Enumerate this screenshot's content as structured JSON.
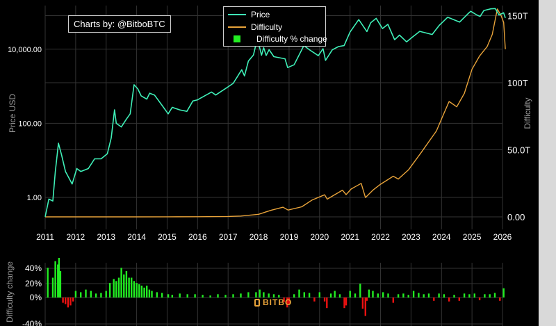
{
  "credit": "Charts by: @BitboBTC",
  "watermark": "BITBO",
  "colors": {
    "price": "#3ff0b8",
    "difficulty": "#e8a33a",
    "change_positive": "#22ee22",
    "change_negative": "#ee1111",
    "grid": "#333333",
    "text": "#ffffff",
    "axis_title": "#9a9a9a"
  },
  "chart_data": [
    {
      "type": "line",
      "log_y": true,
      "x_ticks": [
        "2011",
        "2012",
        "2013",
        "2014",
        "2015",
        "2016",
        "2017",
        "2018",
        "2019",
        "2020",
        "2021",
        "2022",
        "2023",
        "2024",
        "2025",
        "2026"
      ],
      "ylabel": "Price USD",
      "y_ticks": [
        {
          "value": 1,
          "label": "1.00"
        },
        {
          "value": 100,
          "label": "100.00"
        },
        {
          "value": 10000,
          "label": "10,000.00"
        }
      ],
      "y2label": "Difficulty",
      "y2_ticks": [
        {
          "value": 0,
          "label": "0.00"
        },
        {
          "value": 50,
          "label": "50.0T"
        },
        {
          "value": 100,
          "label": "100T"
        },
        {
          "value": 150,
          "label": "150T"
        }
      ],
      "legend": [
        "Price",
        "Difficulty",
        "Difficulty % change"
      ],
      "series": [
        {
          "name": "Price",
          "axis": "left",
          "points": [
            [
              "2011-01-01",
              0.3
            ],
            [
              "2011-02-15",
              0.9
            ],
            [
              "2011-04-01",
              0.8
            ],
            [
              "2011-05-01",
              5
            ],
            [
              "2011-06-08",
              29
            ],
            [
              "2011-07-15",
              14
            ],
            [
              "2011-09-01",
              5
            ],
            [
              "2011-11-20",
              2.3
            ],
            [
              "2012-01-15",
              6
            ],
            [
              "2012-03-01",
              5
            ],
            [
              "2012-06-01",
              6
            ],
            [
              "2012-08-15",
              11
            ],
            [
              "2012-11-01",
              11
            ],
            [
              "2013-01-15",
              15
            ],
            [
              "2013-03-01",
              40
            ],
            [
              "2013-04-10",
              230
            ],
            [
              "2013-05-01",
              100
            ],
            [
              "2013-07-01",
              80
            ],
            [
              "2013-09-01",
              130
            ],
            [
              "2013-10-15",
              180
            ],
            [
              "2013-12-01",
              1100
            ],
            [
              "2014-01-15",
              850
            ],
            [
              "2014-02-25",
              550
            ],
            [
              "2014-05-01",
              450
            ],
            [
              "2014-06-05",
              650
            ],
            [
              "2014-08-01",
              580
            ],
            [
              "2014-10-01",
              380
            ],
            [
              "2015-01-14",
              180
            ],
            [
              "2015-03-01",
              270
            ],
            [
              "2015-06-01",
              230
            ],
            [
              "2015-08-25",
              210
            ],
            [
              "2015-11-05",
              400
            ],
            [
              "2016-01-01",
              430
            ],
            [
              "2016-06-15",
              700
            ],
            [
              "2016-08-05",
              580
            ],
            [
              "2016-12-31",
              960
            ],
            [
              "2017-03-01",
              1200
            ],
            [
              "2017-06-12",
              2800
            ],
            [
              "2017-07-15",
              1900
            ],
            [
              "2017-09-01",
              4800
            ],
            [
              "2017-11-01",
              7000
            ],
            [
              "2017-12-17",
              19500
            ],
            [
              "2018-02-06",
              6900
            ],
            [
              "2018-03-01",
              11000
            ],
            [
              "2018-04-01",
              6800
            ],
            [
              "2018-05-05",
              9700
            ],
            [
              "2018-07-01",
              6300
            ],
            [
              "2018-11-14",
              5500
            ],
            [
              "2018-12-15",
              3200
            ],
            [
              "2019-03-01",
              3800
            ],
            [
              "2019-06-26",
              12500
            ],
            [
              "2019-09-01",
              9700
            ],
            [
              "2019-12-17",
              6700
            ],
            [
              "2020-02-12",
              10300
            ],
            [
              "2020-03-12",
              5000
            ],
            [
              "2020-06-01",
              9600
            ],
            [
              "2020-08-15",
              11800
            ],
            [
              "2020-10-21",
              12500
            ],
            [
              "2020-12-31",
              29000
            ],
            [
              "2021-04-14",
              63000
            ],
            [
              "2021-07-20",
              30000
            ],
            [
              "2021-09-06",
              52000
            ],
            [
              "2021-11-10",
              68000
            ],
            [
              "2022-01-24",
              36000
            ],
            [
              "2022-03-28",
              47000
            ],
            [
              "2022-06-18",
              18000
            ],
            [
              "2022-08-15",
              24000
            ],
            [
              "2022-11-09",
              15800
            ],
            [
              "2023-01-15",
              21000
            ],
            [
              "2023-04-14",
              30400
            ],
            [
              "2023-09-11",
              25000
            ],
            [
              "2023-12-05",
              44000
            ],
            [
              "2024-03-14",
              73000
            ],
            [
              "2024-08-05",
              54000
            ],
            [
              "2024-11-13",
              90000
            ],
            [
              "2024-12-17",
              106000
            ],
            [
              "2025-02-28",
              84000
            ],
            [
              "2025-04-07",
              77000
            ],
            [
              "2025-05-22",
              111000
            ],
            [
              "2025-08-14",
              123000
            ],
            [
              "2025-10-06",
              125000
            ],
            [
              "2025-11-21",
              84000
            ],
            [
              "2026-01-14",
              96000
            ],
            [
              "2026-02-05",
              70000
            ]
          ]
        },
        {
          "name": "Difficulty",
          "axis": "right",
          "points": [
            [
              "2011-01-01",
              0
            ],
            [
              "2014-01-01",
              0.0015
            ],
            [
              "2015-01-01",
              0.04
            ],
            [
              "2016-01-01",
              0.11
            ],
            [
              "2017-01-01",
              0.33
            ],
            [
              "2017-06-01",
              0.6
            ],
            [
              "2018-01-01",
              1.9
            ],
            [
              "2018-06-01",
              5
            ],
            [
              "2018-10-20",
              7.2
            ],
            [
              "2018-12-20",
              5.1
            ],
            [
              "2019-06-01",
              7.5
            ],
            [
              "2019-10-01",
              12.5
            ],
            [
              "2020-03-01",
              16.5
            ],
            [
              "2020-04-01",
              13.2
            ],
            [
              "2020-10-01",
              19.9
            ],
            [
              "2020-11-15",
              16.6
            ],
            [
              "2021-01-15",
              20.8
            ],
            [
              "2021-05-13",
              25
            ],
            [
              "2021-07-03",
              14.4
            ],
            [
              "2021-10-01",
              19.9
            ],
            [
              "2022-01-01",
              24.3
            ],
            [
              "2022-06-01",
              30.3
            ],
            [
              "2022-08-01",
              28.2
            ],
            [
              "2022-12-01",
              35
            ],
            [
              "2023-05-01",
              48
            ],
            [
              "2023-11-01",
              64
            ],
            [
              "2024-01-01",
              73
            ],
            [
              "2024-04-01",
              86
            ],
            [
              "2024-07-01",
              82
            ],
            [
              "2024-10-01",
              92
            ],
            [
              "2025-01-01",
              110
            ],
            [
              "2025-04-01",
              120
            ],
            [
              "2025-07-01",
              127
            ],
            [
              "2025-09-01",
              136
            ],
            [
              "2025-11-01",
              155
            ],
            [
              "2025-12-15",
              150
            ],
            [
              "2026-01-15",
              145
            ],
            [
              "2026-02-05",
              125
            ]
          ]
        }
      ]
    },
    {
      "type": "bar",
      "ylabel": "Difficulty change",
      "y_ticks": [
        "-40%",
        "0%",
        "20%",
        "40%"
      ],
      "series": [
        {
          "name": "Difficulty % change",
          "x": [
            "2011-02-01",
            "2011-04-01",
            "2011-05-01",
            "2011-06-01",
            "2011-06-15",
            "2011-07-01",
            "2011-08-01",
            "2011-09-01",
            "2011-10-01",
            "2011-11-01",
            "2011-12-01",
            "2012-01-01",
            "2012-03-01",
            "2012-05-01",
            "2012-07-01",
            "2012-09-01",
            "2012-11-01",
            "2013-01-01",
            "2013-02-15",
            "2013-04-01",
            "2013-05-01",
            "2013-06-01",
            "2013-07-01",
            "2013-08-01",
            "2013-09-01",
            "2013-10-01",
            "2013-11-01",
            "2013-12-01",
            "2014-01-01",
            "2014-02-01",
            "2014-03-01",
            "2014-04-01",
            "2014-05-01",
            "2014-06-01",
            "2014-07-01",
            "2014-09-01",
            "2014-11-01",
            "2015-01-15",
            "2015-03-01",
            "2015-06-01",
            "2015-09-01",
            "2015-12-01",
            "2016-03-01",
            "2016-06-01",
            "2016-09-01",
            "2016-12-01",
            "2017-03-01",
            "2017-06-01",
            "2017-09-01",
            "2017-12-01",
            "2018-01-15",
            "2018-03-01",
            "2018-05-01",
            "2018-07-01",
            "2018-09-01",
            "2018-11-01",
            "2018-12-10",
            "2019-01-01",
            "2019-03-01",
            "2019-05-01",
            "2019-07-01",
            "2019-09-01",
            "2019-11-01",
            "2020-01-01",
            "2020-03-01",
            "2020-03-28",
            "2020-05-15",
            "2020-07-01",
            "2020-09-01",
            "2020-10-25",
            "2020-11-15",
            "2021-01-01",
            "2021-03-01",
            "2021-05-01",
            "2021-06-01",
            "2021-07-03",
            "2021-07-20",
            "2021-08-15",
            "2021-10-01",
            "2021-12-01",
            "2022-02-01",
            "2022-04-01",
            "2022-06-01",
            "2022-08-01",
            "2022-10-01",
            "2022-12-01",
            "2023-02-01",
            "2023-04-01",
            "2023-06-01",
            "2023-08-01",
            "2023-10-01",
            "2023-12-01",
            "2024-02-01",
            "2024-04-01",
            "2024-06-01",
            "2024-08-01",
            "2024-10-01",
            "2024-12-01",
            "2025-02-01",
            "2025-04-01",
            "2025-06-01",
            "2025-08-01",
            "2025-10-01",
            "2025-12-01",
            "2026-01-15"
          ],
          "values": [
            45,
            30,
            55,
            50,
            60,
            40,
            -8,
            -10,
            -15,
            -12,
            -6,
            10,
            8,
            12,
            10,
            6,
            7,
            10,
            22,
            28,
            25,
            30,
            45,
            35,
            40,
            30,
            30,
            25,
            22,
            20,
            18,
            15,
            18,
            12,
            10,
            8,
            7,
            5,
            4,
            6,
            5,
            5,
            4,
            3,
            5,
            4,
            5,
            6,
            8,
            8,
            12,
            8,
            6,
            5,
            4,
            -7,
            -15,
            -10,
            5,
            12,
            8,
            7,
            -6,
            8,
            -6,
            -16,
            6,
            10,
            5,
            -16,
            -12,
            10,
            6,
            21,
            -17,
            -28,
            -5,
            12,
            10,
            6,
            8,
            6,
            -8,
            5,
            6,
            4,
            10,
            7,
            5,
            6,
            -5,
            6,
            5,
            -6,
            4,
            -5,
            6,
            5,
            6,
            -4,
            5,
            5,
            7,
            -5,
            14
          ]
        }
      ]
    }
  ]
}
